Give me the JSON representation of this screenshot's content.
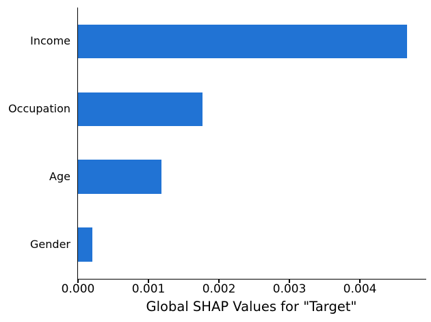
{
  "figure": {
    "background": "#ffffff",
    "spine_color": "#000000",
    "text_color": "#000000"
  },
  "chart_data": {
    "type": "bar",
    "orientation": "horizontal",
    "title": "",
    "xlabel": "Global SHAP Values for \"Target\"",
    "ylabel": "",
    "categories": [
      "Income",
      "Occupation",
      "Age",
      "Gender"
    ],
    "values": [
      0.00467,
      0.00177,
      0.00118,
      0.0002
    ],
    "x_ticks": [
      0,
      0.001,
      0.002,
      0.003,
      0.004
    ],
    "x_tick_labels": [
      "0.000",
      "0.001",
      "0.002",
      "0.003",
      "0.004"
    ],
    "xlim": [
      0,
      0.00494
    ],
    "bar_color": "#2173d4",
    "bar_height_fraction": 0.5,
    "grid": false,
    "legend": null,
    "spines_visible": [
      "left",
      "bottom"
    ]
  }
}
